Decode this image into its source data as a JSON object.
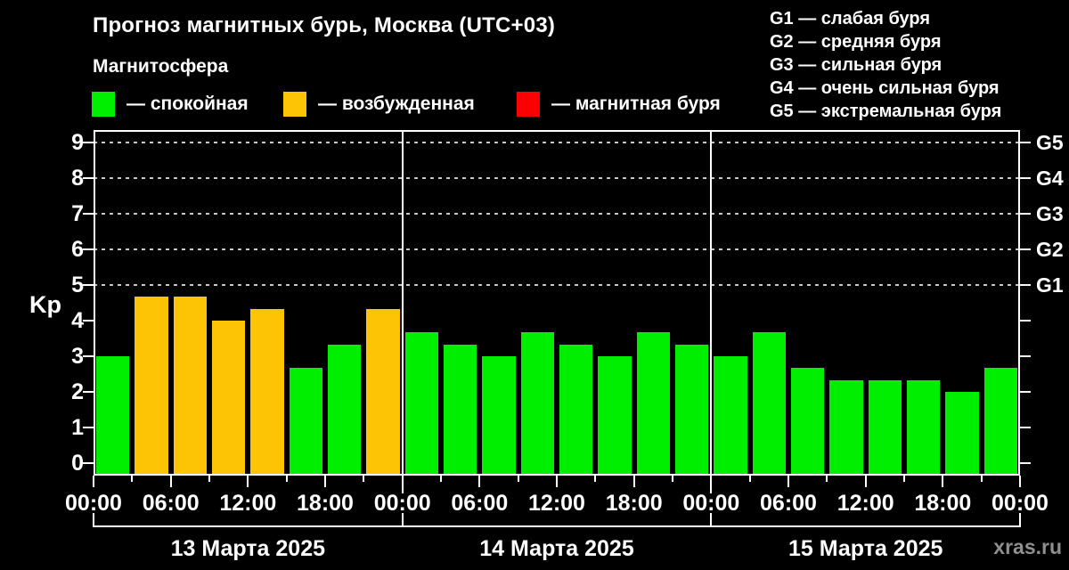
{
  "header": {
    "title": "Прогноз магнитных бурь, Москва (UTC+03)",
    "subtitle": "Магнитосфера",
    "legend": [
      {
        "name": "quiet",
        "label": "— спокойная",
        "color": "#00ee00"
      },
      {
        "name": "excited",
        "label": "— возбужденная",
        "color": "#fcc404"
      },
      {
        "name": "storm",
        "label": "— магнитная буря",
        "color": "#fa0000"
      }
    ],
    "storm_scale": [
      "G1 — слабая буря",
      "G2 — средняя буря",
      "G3 — сильная буря",
      "G4 — очень сильная буря",
      "G5 — экстремальная буря"
    ]
  },
  "chart_data": {
    "type": "bar",
    "title": "Прогноз магнитных бурь, Москва (UTC+03)",
    "ylabel": "Kp",
    "ylim": [
      0,
      9
    ],
    "yticks": [
      0,
      1,
      2,
      3,
      4,
      5,
      6,
      7,
      8,
      9
    ],
    "grid": "dashed horizontal lines at Kp 5-9",
    "right_axis": [
      {
        "label": "G1",
        "kp": 5
      },
      {
        "label": "G2",
        "kp": 6
      },
      {
        "label": "G3",
        "kp": 7
      },
      {
        "label": "G4",
        "kp": 8
      },
      {
        "label": "G5",
        "kp": 9
      }
    ],
    "interval_hours": 3,
    "x_tick_labels_per_day": [
      "00:00",
      "06:00",
      "12:00",
      "18:00"
    ],
    "days": [
      {
        "date": "13 Марта 2025",
        "values": [
          3,
          4.67,
          4.67,
          4,
          4.33,
          2.67,
          3.33,
          4.33
        ],
        "status": [
          "quiet",
          "excited",
          "excited",
          "excited",
          "excited",
          "quiet",
          "quiet",
          "excited"
        ]
      },
      {
        "date": "14 Марта 2025",
        "values": [
          3.67,
          3.33,
          3,
          3.67,
          3.33,
          3,
          3.67,
          3.33
        ],
        "status": [
          "quiet",
          "quiet",
          "quiet",
          "quiet",
          "quiet",
          "quiet",
          "quiet",
          "quiet"
        ]
      },
      {
        "date": "15 Марта 2025",
        "values": [
          3,
          3.67,
          2.67,
          2.33,
          2.33,
          2.33,
          2,
          2.67
        ],
        "status": [
          "quiet",
          "quiet",
          "quiet",
          "quiet",
          "quiet",
          "quiet",
          "quiet",
          "quiet"
        ]
      }
    ],
    "status_colors": {
      "quiet": "#00ee00",
      "excited": "#fcc404",
      "storm": "#fa0000"
    }
  },
  "footer": {
    "watermark": "xras.ru"
  }
}
